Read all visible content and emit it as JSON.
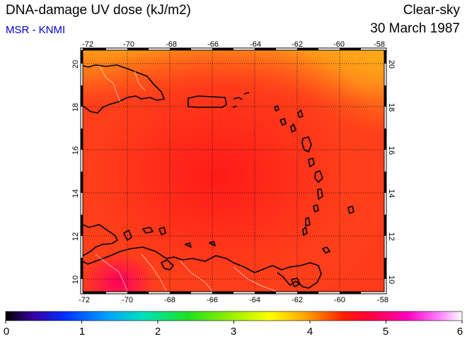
{
  "header": {
    "title": "DNA-damage UV dose (kJ/m2)",
    "source": "MSR - KNMI",
    "condition": "Clear-sky",
    "date": "30 March 1987"
  },
  "map": {
    "lon_range": [
      -72,
      -58
    ],
    "lat_range": [
      9.5,
      20.5
    ],
    "lon_ticks": [
      "-72",
      "-70",
      "-68",
      "-66",
      "-64",
      "-62",
      "-60",
      "-58"
    ],
    "lat_ticks": [
      "10",
      "12",
      "14",
      "16",
      "18",
      "20"
    ],
    "grid": true,
    "features": [
      "Hispaniola",
      "Puerto Rico",
      "Lesser Antilles",
      "Venezuela coast",
      "Trinidad"
    ]
  },
  "colorbar": {
    "min": 0,
    "max": 6,
    "labels": [
      "0",
      "1",
      "2",
      "3",
      "4",
      "5",
      "6"
    ],
    "colors": [
      "#000000",
      "#3a00a0",
      "#0040ff",
      "#00c0ff",
      "#00e080",
      "#40e000",
      "#c0f000",
      "#ffff00",
      "#ffa000",
      "#ff2000",
      "#ff0060",
      "#ff00c0",
      "#ff80ff",
      "#ffffff"
    ]
  },
  "colors": {
    "field_low": "#ff2a1a",
    "field_high": "#ff8a18",
    "source_text": "#0000cc"
  }
}
